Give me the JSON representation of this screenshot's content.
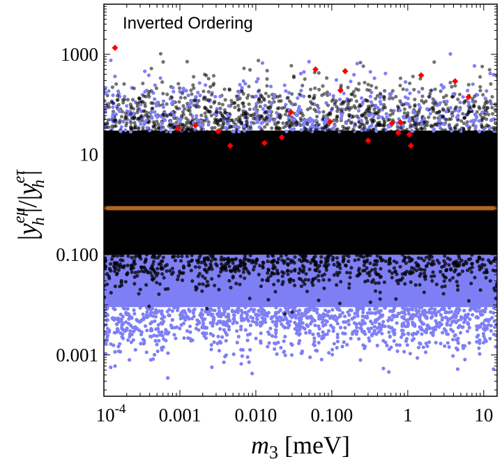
{
  "chart_data": {
    "type": "scatter",
    "title": "",
    "annotation": "Inverted Ordering",
    "xlabel": {
      "var": "m",
      "sub": "3",
      "unit": " [meV]"
    },
    "ylabel": {
      "num_sup": "eμ",
      "den_sup": "eτ",
      "base": "y",
      "sub": "h"
    },
    "xscale": "log",
    "yscale": "log",
    "xlim": [
      0.0001,
      15
    ],
    "ylim": [
      0.00015,
      10000
    ],
    "x_ticks": [
      {
        "value": 0.0001,
        "label": "10",
        "exp": "-4"
      },
      {
        "value": 0.001,
        "label": "0.001"
      },
      {
        "value": 0.01,
        "label": "0.010"
      },
      {
        "value": 0.1,
        "label": "0.100"
      },
      {
        "value": 1,
        "label": "1"
      },
      {
        "value": 10,
        "label": "10"
      }
    ],
    "y_ticks": [
      {
        "value": 0.001,
        "label": "0.001"
      },
      {
        "value": 0.1,
        "label": "0.100"
      },
      {
        "value": 10,
        "label": "10"
      },
      {
        "value": 1000,
        "label": "1000"
      }
    ],
    "series": [
      {
        "name": "blue-points",
        "color": "#7f7ff5",
        "description": "scattered points, dense between y≈0.005 and y≈0.1",
        "y_range": [
          0.0003,
          2500
        ]
      },
      {
        "name": "black-points",
        "color": "#000000",
        "description": "dense band from y≈0.1 to y≈30 spanning full x-range",
        "y_range": [
          0.05,
          3000
        ]
      },
      {
        "name": "orange-band",
        "color": "#b5651d",
        "description": "thin horizontal band at y≈0.85",
        "y_value": 0.85
      },
      {
        "name": "red-diamonds",
        "color": "#ff0000",
        "points": [
          {
            "x": 0.00014,
            "y": 1350
          },
          {
            "x": 0.00095,
            "y": 33
          },
          {
            "x": 0.0016,
            "y": 38
          },
          {
            "x": 0.0032,
            "y": 29
          },
          {
            "x": 0.0046,
            "y": 15
          },
          {
            "x": 0.013,
            "y": 17
          },
          {
            "x": 0.022,
            "y": 22
          },
          {
            "x": 0.029,
            "y": 70
          },
          {
            "x": 0.061,
            "y": 500
          },
          {
            "x": 0.095,
            "y": 45
          },
          {
            "x": 0.13,
            "y": 190
          },
          {
            "x": 0.15,
            "y": 460
          },
          {
            "x": 0.3,
            "y": 19
          },
          {
            "x": 0.62,
            "y": 42
          },
          {
            "x": 0.75,
            "y": 27
          },
          {
            "x": 0.8,
            "y": 44
          },
          {
            "x": 1.05,
            "y": 25
          },
          {
            "x": 1.1,
            "y": 15
          },
          {
            "x": 1.5,
            "y": 380
          },
          {
            "x": 4.2,
            "y": 290
          },
          {
            "x": 6.3,
            "y": 140
          }
        ]
      }
    ]
  }
}
